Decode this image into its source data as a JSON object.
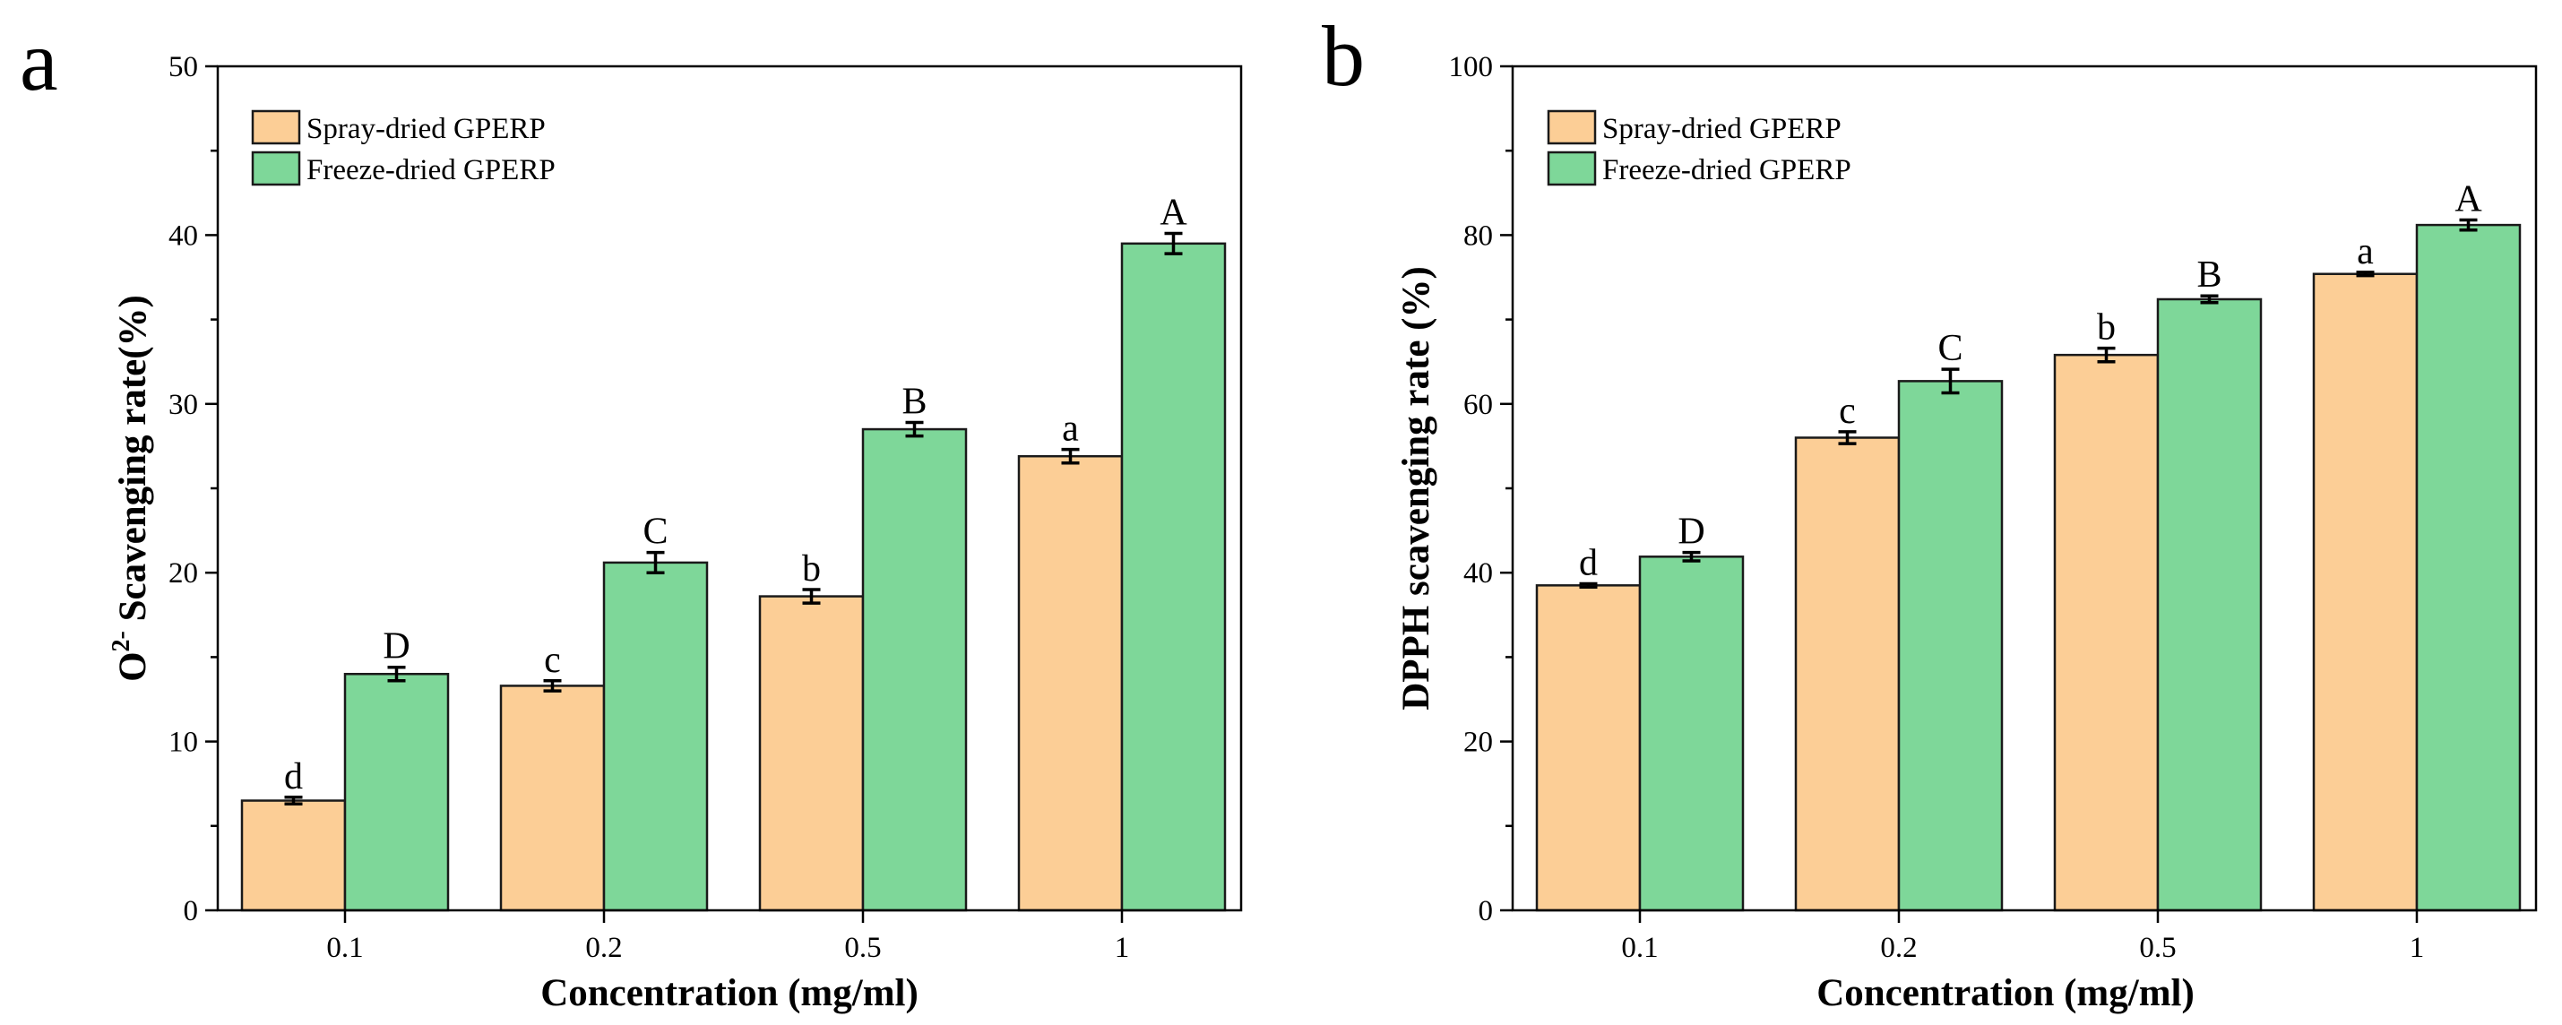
{
  "colors": {
    "spray": "#fcce96",
    "freeze": "#7ed799"
  },
  "chart_data": [
    {
      "panel": "a",
      "type": "bar",
      "categories": [
        "0.1",
        "0.2",
        "0.5",
        "1"
      ],
      "series": [
        {
          "name": "Spray-dried GPERP",
          "values": [
            6.5,
            13.3,
            18.6,
            26.9
          ],
          "errors": [
            0.2,
            0.3,
            0.4,
            0.4
          ],
          "labels": [
            "d",
            "c",
            "b",
            "a"
          ]
        },
        {
          "name": "Freeze-dried GPERP",
          "values": [
            14.0,
            20.6,
            28.5,
            39.5
          ],
          "errors": [
            0.4,
            0.6,
            0.4,
            0.6
          ],
          "labels": [
            "D",
            "C",
            "B",
            "A"
          ]
        }
      ],
      "xlabel": "Concentration (mg/ml)",
      "ylabel_base": "O",
      "ylabel_sup": "2-",
      "ylabel_rest": " Scavenging rate(%)",
      "ylim": [
        0,
        50
      ],
      "yticks": [
        "0",
        "10",
        "20",
        "30",
        "40",
        "50"
      ]
    },
    {
      "panel": "b",
      "type": "bar",
      "categories": [
        "0.1",
        "0.2",
        "0.5",
        "1"
      ],
      "series": [
        {
          "name": "Spray-dried GPERP",
          "values": [
            38.5,
            56.0,
            65.8,
            75.4
          ],
          "errors": [
            0.2,
            0.7,
            0.8,
            0.2
          ],
          "labels": [
            "d",
            "c",
            "b",
            "a"
          ]
        },
        {
          "name": "Freeze-dried GPERP",
          "values": [
            41.9,
            62.7,
            72.4,
            81.2
          ],
          "errors": [
            0.5,
            1.4,
            0.4,
            0.6
          ],
          "labels": [
            "D",
            "C",
            "B",
            "A"
          ]
        }
      ],
      "xlabel": "Concentration (mg/ml)",
      "ylabel": "DPPH scavenging rate (%)",
      "ylim": [
        0,
        100
      ],
      "yticks": [
        "0",
        "20",
        "40",
        "60",
        "80",
        "100"
      ]
    }
  ]
}
